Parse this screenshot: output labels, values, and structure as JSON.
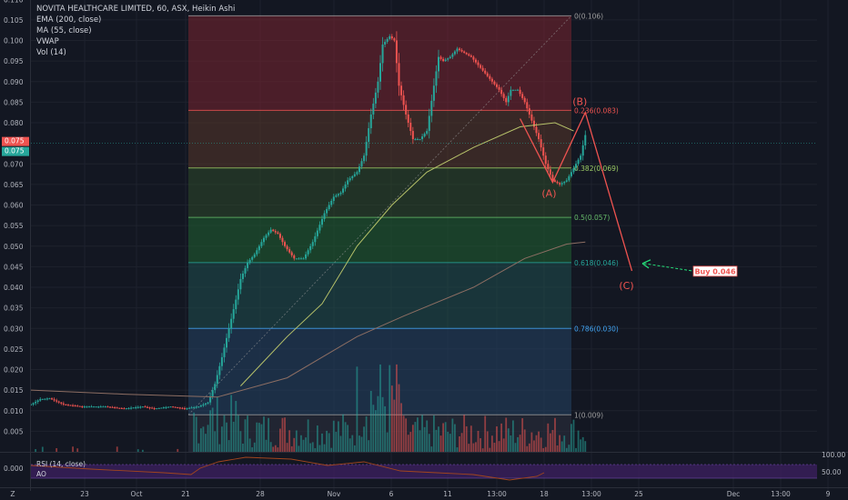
{
  "legend": {
    "title": "NOVITA HEALTHCARE LIMITED, 60, ASX, Heikin Ashi",
    "indicators": [
      "EMA (200, close)",
      "MA (55, close)",
      "VWAP",
      "Vol (14)"
    ]
  },
  "rsi_label": "RSI (14, close)",
  "ao_label": "AO",
  "buy_tag": "Buy 0.046",
  "price_tags": [
    "0.075",
    "0.075"
  ],
  "waves": [
    "(A)",
    "(B)",
    "(C)"
  ],
  "colors": {
    "background": "#131722",
    "up": "#26a69a",
    "down": "#ef5350",
    "volume_up": "#26a69a",
    "volume_down": "#ef5350",
    "ema": "#8d6e63",
    "ma": "#b7c26a",
    "rsi": "#7e57c2",
    "buy_arrow": "#26e07a"
  },
  "chart_data": {
    "type": "candlestick",
    "symbol": "NOVITA HEALTHCARE LIMITED",
    "interval": "60",
    "exchange": "ASX",
    "style": "Heikin Ashi",
    "x_ticks": [
      "23",
      "Oct",
      "21",
      "28",
      "Nov",
      "6",
      "11",
      "13:00",
      "18",
      "13:00",
      "25",
      "Dec",
      "13:00",
      "9"
    ],
    "y_ticks": [
      "0.110",
      "0.105",
      "0.100",
      "0.095",
      "0.090",
      "0.085",
      "0.080",
      "0.070",
      "0.065",
      "0.060",
      "0.055",
      "0.050",
      "0.045",
      "0.040",
      "0.035",
      "0.030",
      "0.025",
      "0.020",
      "0.015",
      "0.010",
      "0.005"
    ],
    "ylim": [
      0,
      0.11
    ],
    "rsi_ticks": [
      "100.00",
      "50.00"
    ],
    "ao_ticks": [
      "0.000"
    ],
    "fibonacci": [
      {
        "level": "0",
        "price": 0.106,
        "label": "0(0.106)"
      },
      {
        "level": "0.236",
        "price": 0.083,
        "label": "0.236(0.083)"
      },
      {
        "level": "0.382",
        "price": 0.069,
        "label": "0.382(0.069)"
      },
      {
        "level": "0.5",
        "price": 0.057,
        "label": "0.5(0.057)"
      },
      {
        "level": "0.618",
        "price": 0.046,
        "label": "0.618(0.046)"
      },
      {
        "level": "0.786",
        "price": 0.03,
        "label": "0.786(0.030)"
      },
      {
        "level": "1",
        "price": 0.009,
        "label": "1(0.009)"
      }
    ],
    "price_path": [
      [
        0,
        0.0115
      ],
      [
        4,
        0.0128
      ],
      [
        8,
        0.013
      ],
      [
        14,
        0.0115
      ],
      [
        22,
        0.011
      ],
      [
        32,
        0.011
      ],
      [
        40,
        0.0105
      ],
      [
        48,
        0.011
      ],
      [
        53,
        0.0105
      ],
      [
        60,
        0.011
      ],
      [
        66,
        0.0105
      ],
      [
        72,
        0.011
      ],
      [
        76,
        0.012
      ],
      [
        79,
        0.0165
      ],
      [
        82,
        0.023
      ],
      [
        85,
        0.03
      ],
      [
        88,
        0.037
      ],
      [
        90,
        0.042
      ],
      [
        93,
        0.046
      ],
      [
        96,
        0.048
      ],
      [
        100,
        0.052
      ],
      [
        103,
        0.054
      ],
      [
        106,
        0.053
      ],
      [
        109,
        0.05
      ],
      [
        113,
        0.047
      ],
      [
        117,
        0.047
      ],
      [
        121,
        0.051
      ],
      [
        126,
        0.058
      ],
      [
        130,
        0.062
      ],
      [
        133,
        0.063
      ],
      [
        136,
        0.066
      ],
      [
        140,
        0.068
      ],
      [
        143,
        0.072
      ],
      [
        146,
        0.082
      ],
      [
        149,
        0.09
      ],
      [
        151,
        0.099
      ],
      [
        154,
        0.101
      ],
      [
        156,
        0.1
      ],
      [
        158,
        0.089
      ],
      [
        161,
        0.082
      ],
      [
        164,
        0.076
      ],
      [
        167,
        0.076
      ],
      [
        170,
        0.078
      ],
      [
        173,
        0.089
      ],
      [
        175,
        0.096
      ],
      [
        177,
        0.095
      ],
      [
        180,
        0.096
      ],
      [
        183,
        0.098
      ],
      [
        186,
        0.097
      ],
      [
        189,
        0.096
      ],
      [
        192,
        0.094
      ],
      [
        195,
        0.092
      ],
      [
        198,
        0.09
      ],
      [
        201,
        0.088
      ],
      [
        204,
        0.085
      ],
      [
        206,
        0.088
      ],
      [
        209,
        0.088
      ],
      [
        212,
        0.085
      ],
      [
        214,
        0.082
      ],
      [
        218,
        0.076
      ],
      [
        221,
        0.07
      ],
      [
        224,
        0.066
      ],
      [
        227,
        0.065
      ],
      [
        230,
        0.066
      ],
      [
        233,
        0.069
      ],
      [
        236,
        0.072
      ],
      [
        238,
        0.077
      ]
    ],
    "ema200": [
      [
        0,
        0.015
      ],
      [
        40,
        0.014
      ],
      [
        80,
        0.0133
      ],
      [
        110,
        0.018
      ],
      [
        140,
        0.028
      ],
      [
        160,
        0.033
      ],
      [
        190,
        0.04
      ],
      [
        212,
        0.047
      ],
      [
        230,
        0.0505
      ],
      [
        238,
        0.051
      ]
    ],
    "ma55": [
      [
        90,
        0.016
      ],
      [
        110,
        0.028
      ],
      [
        125,
        0.036
      ],
      [
        140,
        0.05
      ],
      [
        155,
        0.06
      ],
      [
        170,
        0.068
      ],
      [
        190,
        0.074
      ],
      [
        210,
        0.079
      ],
      [
        225,
        0.08
      ],
      [
        233,
        0.078
      ]
    ],
    "abc_path": [
      [
        210,
        0.081
      ],
      [
        224,
        0.0655
      ],
      [
        238,
        0.0825
      ],
      [
        258,
        0.044
      ]
    ],
    "wave_points": [
      {
        "label": "(A)",
        "x": 224,
        "y": 0.0655
      },
      {
        "label": "(B)",
        "x": 238,
        "y": 0.0825
      },
      {
        "label": "(C)",
        "x": 258,
        "y": 0.044
      }
    ],
    "target": {
      "label": "Buy 0.046",
      "price": 0.046
    }
  }
}
